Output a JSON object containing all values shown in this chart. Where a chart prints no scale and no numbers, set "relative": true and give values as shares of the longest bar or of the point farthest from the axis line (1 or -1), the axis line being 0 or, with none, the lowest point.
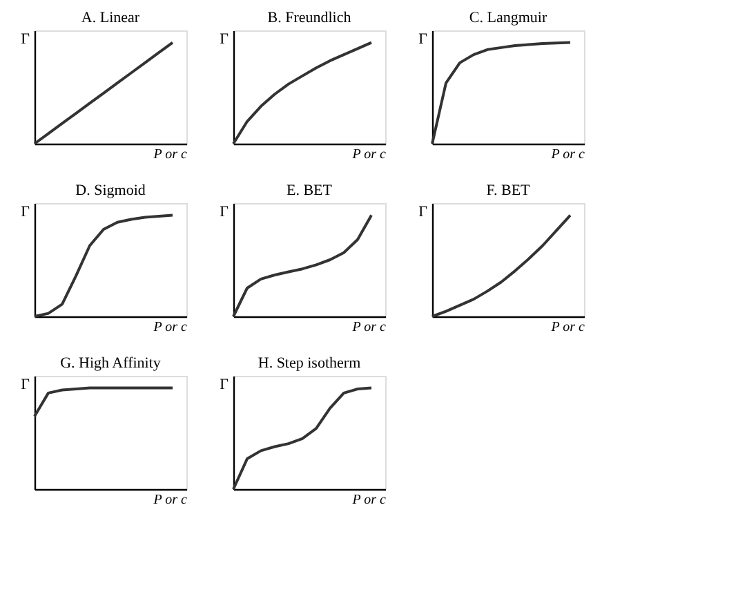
{
  "chart_data": [
    {
      "type": "line",
      "title": "A. Linear",
      "xlabel": "P or c",
      "ylabel": "Γ",
      "relative": true,
      "tick_labels": false,
      "categories": [
        null,
        null,
        null,
        null,
        null,
        null,
        null,
        null,
        null,
        null,
        null,
        null
      ],
      "series": [
        {
          "color": "#333333",
          "values": [
            0,
            0.1,
            0.2,
            0.3,
            0.4,
            0.5,
            0.6,
            0.7,
            0.8,
            0.9,
            1.0,
            null
          ]
        }
      ]
    },
    {
      "type": "line",
      "title": "B. Freundlich",
      "xlabel": "P or c",
      "ylabel": "Γ",
      "relative": true,
      "tick_labels": false,
      "categories": [
        null,
        null,
        null,
        null,
        null,
        null,
        null,
        null,
        null,
        null,
        null,
        null
      ],
      "series": [
        {
          "color": "#333333",
          "values": [
            0,
            0.22,
            0.37,
            0.49,
            0.59,
            0.67,
            0.75,
            0.82,
            0.88,
            0.94,
            1.0,
            null
          ]
        }
      ]
    },
    {
      "type": "line",
      "title": "C. Langmuir",
      "xlabel": "P or c",
      "ylabel": "Γ",
      "relative": true,
      "tick_labels": false,
      "categories": [
        null,
        null,
        null,
        null,
        null,
        null,
        null,
        null,
        null,
        null,
        null,
        null
      ],
      "series": [
        {
          "color": "#333333",
          "values": [
            0,
            0.6,
            0.8,
            0.88,
            0.93,
            0.95,
            0.97,
            0.98,
            0.99,
            0.995,
            1.0,
            null
          ]
        }
      ]
    },
    {
      "type": "line",
      "title": "D. Sigmoid",
      "xlabel": "P or c",
      "ylabel": "Γ",
      "relative": true,
      "tick_labels": false,
      "categories": [
        null,
        null,
        null,
        null,
        null,
        null,
        null,
        null,
        null,
        null,
        null,
        null
      ],
      "series": [
        {
          "color": "#333333",
          "values": [
            0,
            0.03,
            0.12,
            0.4,
            0.7,
            0.86,
            0.93,
            0.96,
            0.98,
            0.99,
            1.0,
            null
          ]
        }
      ]
    },
    {
      "type": "line",
      "title": "E. BET",
      "xlabel": "P or c",
      "ylabel": "Γ",
      "relative": true,
      "tick_labels": false,
      "categories": [
        null,
        null,
        null,
        null,
        null,
        null,
        null,
        null,
        null,
        null,
        null,
        null
      ],
      "series": [
        {
          "color": "#333333",
          "values": [
            0,
            0.28,
            0.37,
            0.41,
            0.44,
            0.47,
            0.51,
            0.56,
            0.63,
            0.76,
            1.0,
            null
          ]
        }
      ]
    },
    {
      "type": "line",
      "title": "F. BET",
      "xlabel": "P or c",
      "ylabel": "Γ",
      "relative": true,
      "tick_labels": false,
      "categories": [
        null,
        null,
        null,
        null,
        null,
        null,
        null,
        null,
        null,
        null,
        null,
        null
      ],
      "series": [
        {
          "color": "#333333",
          "values": [
            0,
            0.05,
            0.11,
            0.17,
            0.25,
            0.34,
            0.45,
            0.57,
            0.7,
            0.85,
            1.0,
            null
          ]
        }
      ]
    },
    {
      "type": "line",
      "title": "G. High Affinity",
      "xlabel": "P or c",
      "ylabel": "Γ",
      "relative": true,
      "tick_labels": false,
      "categories": [
        null,
        null,
        null,
        null,
        null,
        null,
        null,
        null,
        null,
        null,
        null,
        null
      ],
      "series": [
        {
          "color": "#333333",
          "values": [
            0.72,
            0.95,
            0.98,
            0.99,
            1.0,
            1.0,
            1.0,
            1.0,
            1.0,
            1.0,
            1.0,
            null
          ]
        }
      ]
    },
    {
      "type": "line",
      "title": "H. Step isotherm",
      "xlabel": "P or c",
      "ylabel": "Γ",
      "relative": true,
      "tick_labels": false,
      "categories": [
        null,
        null,
        null,
        null,
        null,
        null,
        null,
        null,
        null,
        null,
        null,
        null
      ],
      "series": [
        {
          "color": "#333333",
          "values": [
            0,
            0.3,
            0.38,
            0.42,
            0.45,
            0.5,
            0.6,
            0.8,
            0.95,
            0.99,
            1.0,
            null
          ]
        }
      ]
    }
  ]
}
